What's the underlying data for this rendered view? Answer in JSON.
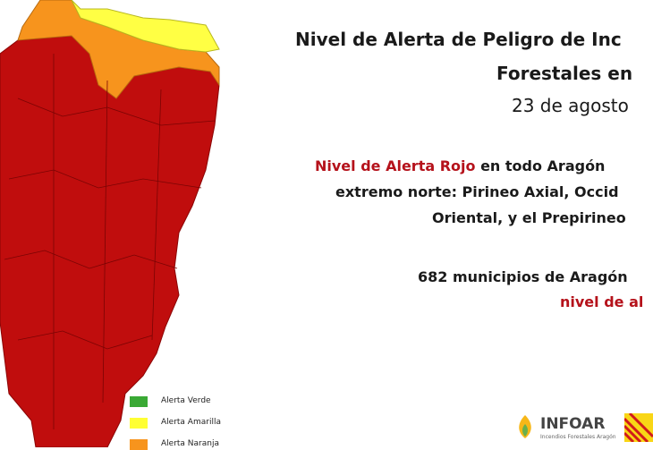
{
  "header": {
    "title_line1": "Nivel de Alerta de Peligro de Inc",
    "title_line2": "Forestales en",
    "date": "23 de agosto"
  },
  "body": {
    "alert_highlight": "Nivel de Alerta Rojo",
    "alert_line1_rest": " en todo Aragón",
    "alert_line2": "extremo norte: Pirineo Axial, Occid",
    "alert_line3": "Oriental, y el Prepirineo",
    "municipios_line1": "682 municipios de Aragón",
    "municipios_line2": "nivel de al"
  },
  "legend": {
    "items": [
      {
        "label": "Alerta Verde",
        "color": "#3aa935"
      },
      {
        "label": "Alerta Amarilla",
        "color": "#ffff33"
      },
      {
        "label": "Alerta Naranja",
        "color": "#f7941d"
      }
    ]
  },
  "logo": {
    "name": "INFOAR",
    "subtitle": "Incendios Forestales Aragón"
  }
}
